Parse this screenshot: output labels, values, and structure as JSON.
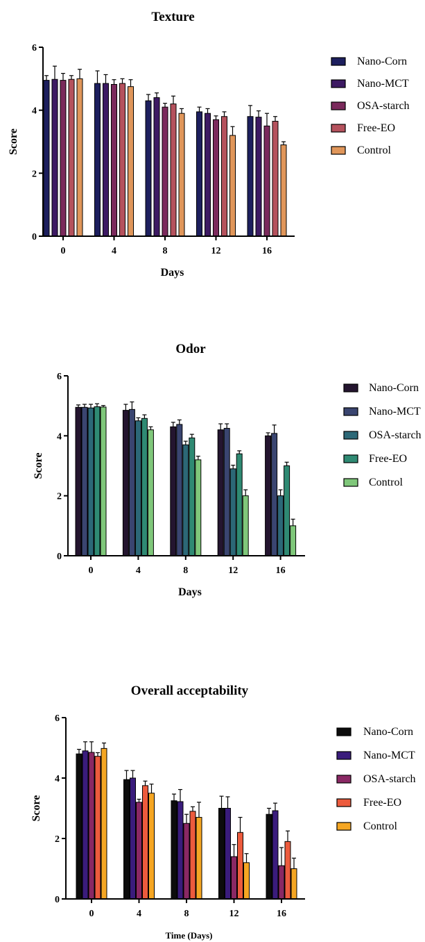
{
  "chart_data": [
    {
      "type": "bar",
      "title": "Texture",
      "xlabel": "Days",
      "ylabel": "Score",
      "categories": [
        "0",
        "4",
        "8",
        "12",
        "16"
      ],
      "ylim": [
        0,
        6
      ],
      "yticks": [
        0,
        2,
        4,
        6
      ],
      "grid": false,
      "legend_position": "right",
      "error_bars": true,
      "series": [
        {
          "name": "Nano-Corn",
          "color": "#1d1f5e",
          "values": [
            4.95,
            4.85,
            4.3,
            3.95,
            3.8
          ],
          "errors": [
            0.15,
            0.4,
            0.2,
            0.15,
            0.35
          ]
        },
        {
          "name": "Nano-MCT",
          "color": "#3d1a63",
          "values": [
            4.98,
            4.85,
            4.4,
            3.9,
            3.78
          ],
          "errors": [
            0.42,
            0.28,
            0.15,
            0.15,
            0.2
          ]
        },
        {
          "name": "OSA-starch",
          "color": "#7b2a5c",
          "values": [
            4.95,
            4.82,
            4.1,
            3.7,
            3.5
          ],
          "errors": [
            0.22,
            0.15,
            0.12,
            0.12,
            0.4
          ]
        },
        {
          "name": "Free-EO",
          "color": "#b5525d",
          "values": [
            4.98,
            4.85,
            4.2,
            3.8,
            3.65
          ],
          "errors": [
            0.12,
            0.15,
            0.25,
            0.15,
            0.15
          ]
        },
        {
          "name": "Control",
          "color": "#e0965a",
          "values": [
            5.0,
            4.75,
            3.9,
            3.2,
            2.9
          ],
          "errors": [
            0.3,
            0.22,
            0.15,
            0.28,
            0.1
          ]
        }
      ]
    },
    {
      "type": "bar",
      "title": "Odor",
      "xlabel": "Days",
      "ylabel": "Score",
      "categories": [
        "0",
        "4",
        "8",
        "12",
        "16"
      ],
      "ylim": [
        0,
        6
      ],
      "yticks": [
        0,
        2,
        4,
        6
      ],
      "grid": false,
      "legend_position": "right",
      "error_bars": true,
      "series": [
        {
          "name": "Nano-Corn",
          "color": "#24152f",
          "values": [
            4.95,
            4.85,
            4.3,
            4.2,
            4.0
          ],
          "errors": [
            0.08,
            0.2,
            0.15,
            0.2,
            0.1
          ]
        },
        {
          "name": "Nano-MCT",
          "color": "#3a4570",
          "values": [
            4.95,
            4.88,
            4.38,
            4.25,
            4.08
          ],
          "errors": [
            0.1,
            0.25,
            0.15,
            0.15,
            0.28
          ]
        },
        {
          "name": "OSA-starch",
          "color": "#2c6877",
          "values": [
            4.93,
            4.5,
            3.7,
            2.9,
            2.0
          ],
          "errors": [
            0.12,
            0.1,
            0.12,
            0.12,
            0.2
          ]
        },
        {
          "name": "Free-EO",
          "color": "#2f8a73",
          "values": [
            4.97,
            4.58,
            3.93,
            3.4,
            3.0
          ],
          "errors": [
            0.1,
            0.12,
            0.12,
            0.1,
            0.12
          ]
        },
        {
          "name": "Control",
          "color": "#7fc77a",
          "values": [
            4.96,
            4.2,
            3.2,
            2.0,
            1.0
          ],
          "errors": [
            0.05,
            0.1,
            0.12,
            0.2,
            0.22
          ]
        }
      ]
    },
    {
      "type": "bar",
      "title": "Overall acceptability",
      "xlabel": "Time (Days)",
      "ylabel": "Score",
      "categories": [
        "0",
        "4",
        "8",
        "12",
        "16"
      ],
      "ylim": [
        0,
        6
      ],
      "yticks": [
        0,
        2,
        4,
        6
      ],
      "grid": false,
      "legend_position": "right",
      "error_bars": true,
      "series": [
        {
          "name": "Nano-Corn",
          "color": "#0c0c0c",
          "values": [
            4.8,
            3.95,
            3.25,
            3.0,
            2.8
          ],
          "errors": [
            0.15,
            0.3,
            0.22,
            0.4,
            0.2
          ]
        },
        {
          "name": "Nano-MCT",
          "color": "#3a1c7c",
          "values": [
            4.9,
            4.0,
            3.22,
            3.0,
            2.92
          ],
          "errors": [
            0.3,
            0.25,
            0.4,
            0.38,
            0.25
          ]
        },
        {
          "name": "OSA-starch",
          "color": "#8a2864",
          "values": [
            4.85,
            3.2,
            2.5,
            1.4,
            1.1
          ],
          "errors": [
            0.35,
            0.1,
            0.3,
            0.4,
            0.6
          ]
        },
        {
          "name": "Free-EO",
          "color": "#ec5b3d",
          "values": [
            4.72,
            3.75,
            2.9,
            2.2,
            1.9
          ],
          "errors": [
            0.12,
            0.15,
            0.15,
            0.5,
            0.35
          ]
        },
        {
          "name": "Control",
          "color": "#f5a623",
          "values": [
            4.98,
            3.5,
            2.7,
            1.2,
            1.0
          ],
          "errors": [
            0.18,
            0.3,
            0.5,
            0.3,
            0.35
          ]
        }
      ]
    }
  ]
}
